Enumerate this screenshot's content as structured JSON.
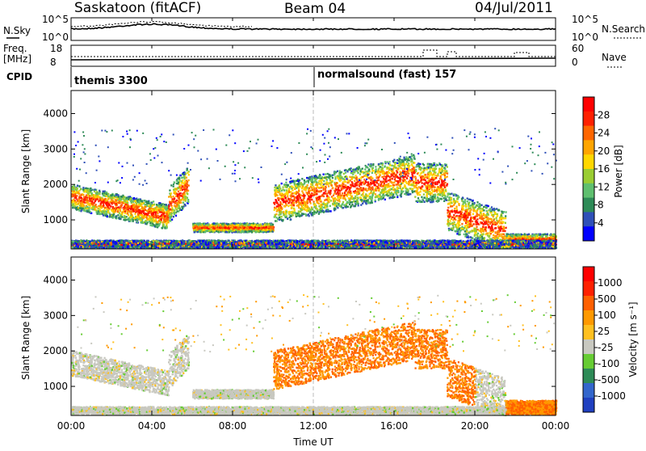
{
  "header": {
    "station": "Saskatoon (fitACF)",
    "beam": "Beam 04",
    "date": "04/Jul/2011"
  },
  "noise_panel": {
    "left_label": "N.Sky",
    "left_ticks": [
      "10^5",
      "10^0"
    ],
    "right_label": "N.Search",
    "right_ticks": [
      "10^5",
      "10^0"
    ]
  },
  "freq_panel": {
    "left_label_1": "Freq.",
    "left_label_2": "[MHz]",
    "left_ticks": [
      "18",
      "8"
    ],
    "right_label": "Nave",
    "right_ticks": [
      "60",
      "0"
    ]
  },
  "cpid_panel": {
    "label": "CPID",
    "modes": [
      {
        "name": "themis 3300",
        "start_hour": 0
      },
      {
        "name": "normalsound (fast) 157",
        "start_hour": 12
      }
    ]
  },
  "chart_data": [
    {
      "type": "heatmap",
      "name": "power",
      "ylabel": "Slant Range [km]",
      "ylim": [
        180,
        4650
      ],
      "yticks": [
        1000,
        2000,
        3000,
        4000
      ],
      "xlim": [
        0,
        24
      ],
      "xticks_hours": [
        0,
        4,
        8,
        12,
        16,
        20,
        24
      ],
      "xtick_labels": [
        "00:00",
        "04:00",
        "08:00",
        "12:00",
        "16:00",
        "20:00",
        "00:00"
      ],
      "colorbar": {
        "label": "Power [dB]",
        "ticks": [
          "4",
          "8",
          "12",
          "16",
          "20",
          "24",
          "28"
        ],
        "colors": [
          "#0000ff",
          "#2f50b8",
          "#2e8b57",
          "#5fbf6f",
          "#9acd32",
          "#ffd700",
          "#ffa500",
          "#ff6600",
          "#ff2000",
          "#ff0000"
        ]
      }
    },
    {
      "type": "heatmap",
      "name": "velocity",
      "ylabel": "Slant Range [km]",
      "ylim": [
        180,
        4650
      ],
      "yticks": [
        1000,
        2000,
        3000,
        4000
      ],
      "xlim": [
        0,
        24
      ],
      "xticks_hours": [
        0,
        4,
        8,
        12,
        16,
        20,
        24
      ],
      "xtick_labels": [
        "00:00",
        "04:00",
        "08:00",
        "12:00",
        "16:00",
        "20:00",
        "00:00"
      ],
      "xlabel": "Time UT",
      "colorbar": {
        "label": "Velocity [m s⁻¹]",
        "ticks": [
          "1000",
          "500",
          "100",
          "25",
          "-25",
          "-100",
          "-500",
          "-1000"
        ],
        "colors": [
          "#2040c0",
          "#3366cc",
          "#2e8b57",
          "#66cc33",
          "#c8c8c0",
          "#ffc020",
          "#ff9900",
          "#ff6000",
          "#ff2000",
          "#ff0000"
        ]
      }
    }
  ]
}
